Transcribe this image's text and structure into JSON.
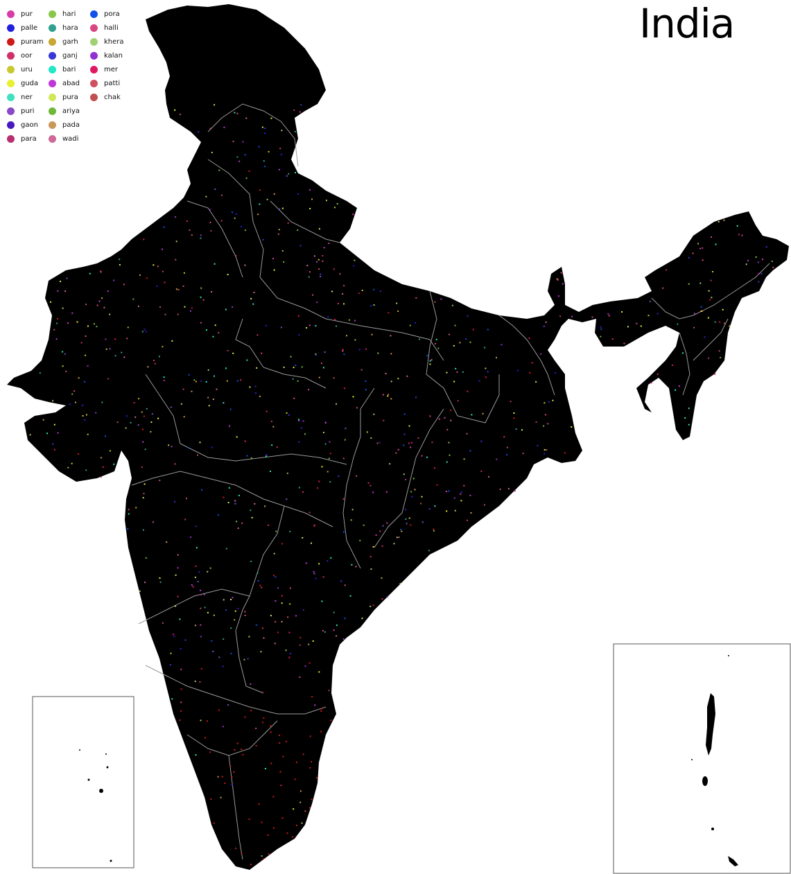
{
  "title": "India",
  "legend": {
    "items": [
      {
        "label": "pur",
        "color": "#d93ca7"
      },
      {
        "label": "palle",
        "color": "#2020e0"
      },
      {
        "label": "puram",
        "color": "#d01818"
      },
      {
        "label": "oor",
        "color": "#d0306a"
      },
      {
        "label": "uru",
        "color": "#c8c830"
      },
      {
        "label": "guda",
        "color": "#e8f030"
      },
      {
        "label": "ner",
        "color": "#40e0c0"
      },
      {
        "label": "puri",
        "color": "#8848c8"
      },
      {
        "label": "gaon",
        "color": "#4818c0"
      },
      {
        "label": "para",
        "color": "#b83070"
      },
      {
        "label": "hari",
        "color": "#88c848"
      },
      {
        "label": "hara",
        "color": "#30a090"
      },
      {
        "label": "garh",
        "color": "#c8a830"
      },
      {
        "label": "ganj",
        "color": "#3838d8"
      },
      {
        "label": "bari",
        "color": "#20e8c8"
      },
      {
        "label": "abad",
        "color": "#c038d8"
      },
      {
        "label": "pura",
        "color": "#d0e858"
      },
      {
        "label": "ariya",
        "color": "#70b838"
      },
      {
        "label": "pada",
        "color": "#c89858"
      },
      {
        "label": "wadi",
        "color": "#d06898"
      },
      {
        "label": "pora",
        "color": "#1050e8"
      },
      {
        "label": "halli",
        "color": "#d84880"
      },
      {
        "label": "khera",
        "color": "#a0d070"
      },
      {
        "label": "kalan",
        "color": "#9030d0"
      },
      {
        "label": "mer",
        "color": "#e01860"
      },
      {
        "label": "patti",
        "color": "#d05060"
      },
      {
        "label": "chak",
        "color": "#c05050"
      }
    ]
  },
  "colors": {
    "land": "#000000",
    "borders": "#9a9a9a",
    "background": "#ffffff"
  }
}
